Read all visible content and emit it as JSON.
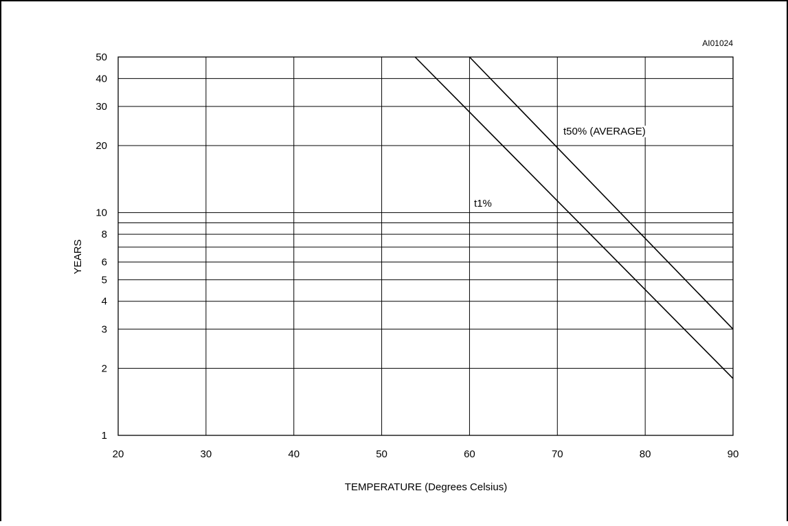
{
  "chart_data": {
    "type": "line",
    "figure_id": "AI01024",
    "xlabel": "TEMPERATURE (Degrees Celsius)",
    "ylabel": "YEARS",
    "xlim": [
      20,
      90
    ],
    "ylim": [
      1,
      50
    ],
    "yscale": "log",
    "grid": true,
    "x_ticks": [
      20,
      30,
      40,
      50,
      60,
      70,
      80,
      90
    ],
    "y_ticks": [
      1,
      2,
      3,
      4,
      5,
      6,
      8,
      10,
      20,
      30,
      40,
      50
    ],
    "y_gridlines": [
      1,
      2,
      3,
      4,
      5,
      6,
      7,
      8,
      9,
      10,
      20,
      30,
      40,
      50
    ],
    "series": [
      {
        "name": "t1%",
        "x": [
          53.8,
          90
        ],
        "y": [
          50,
          1.8
        ]
      },
      {
        "name": "t50% (AVERAGE)",
        "x": [
          60,
          90
        ],
        "y": [
          50,
          3.0
        ]
      }
    ]
  }
}
